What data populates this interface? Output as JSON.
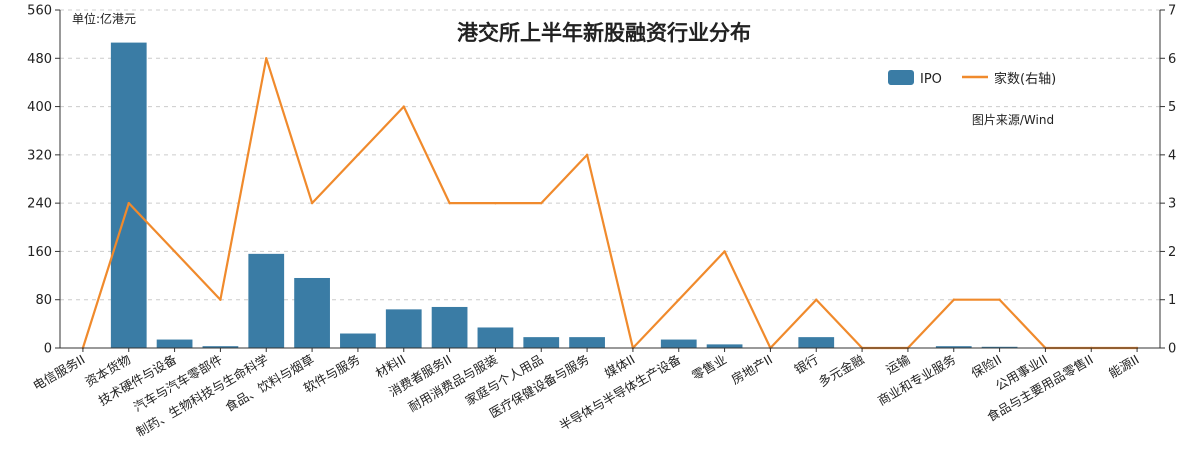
{
  "chart_data": {
    "type": "bar",
    "title": "港交所上半年新股融资行业分布",
    "unit_label": "单位:亿港元",
    "source": "图片来源/Wind",
    "categories": [
      "电信服务II",
      "资本货物",
      "技术硬件与设备",
      "汽车与汽车零部件",
      "制药、生物科技与生命科学",
      "食品、饮料与烟草",
      "软件与服务",
      "材料II",
      "消费者服务II",
      "耐用消费品与服装",
      "家庭与个人用品",
      "医疗保健设备与服务",
      "媒体II",
      "半导体与半导体生产设备",
      "零售业",
      "房地产II",
      "银行",
      "多元金融",
      "运输",
      "商业和专业服务",
      "保险II",
      "公用事业II",
      "食品与主要用品零售II",
      "能源II"
    ],
    "series": [
      {
        "name": "IPO",
        "type": "bar",
        "axis": "left",
        "color": "#3a7ca5",
        "values": [
          0,
          506,
          14,
          3,
          156,
          116,
          24,
          64,
          68,
          34,
          18,
          18,
          0,
          14,
          6,
          0,
          18,
          0,
          0,
          3,
          2,
          0,
          0,
          0
        ]
      },
      {
        "name": "家数(右轴)",
        "type": "line",
        "axis": "right",
        "color": "#f08a2c",
        "values": [
          0,
          3,
          2,
          1,
          6,
          3,
          4,
          5,
          3,
          3,
          3,
          4,
          0,
          1,
          2,
          0,
          1,
          0,
          0,
          1,
          1,
          0,
          0,
          0
        ]
      }
    ],
    "y_left": {
      "min": 0,
      "max": 560,
      "ticks": [
        0,
        80,
        160,
        240,
        320,
        400,
        480,
        560
      ]
    },
    "y_right": {
      "min": 0,
      "max": 7,
      "ticks": [
        0,
        1,
        2,
        3,
        4,
        5,
        6,
        7
      ]
    },
    "grid": "horizontal dashed",
    "legend_position": "top-right"
  }
}
